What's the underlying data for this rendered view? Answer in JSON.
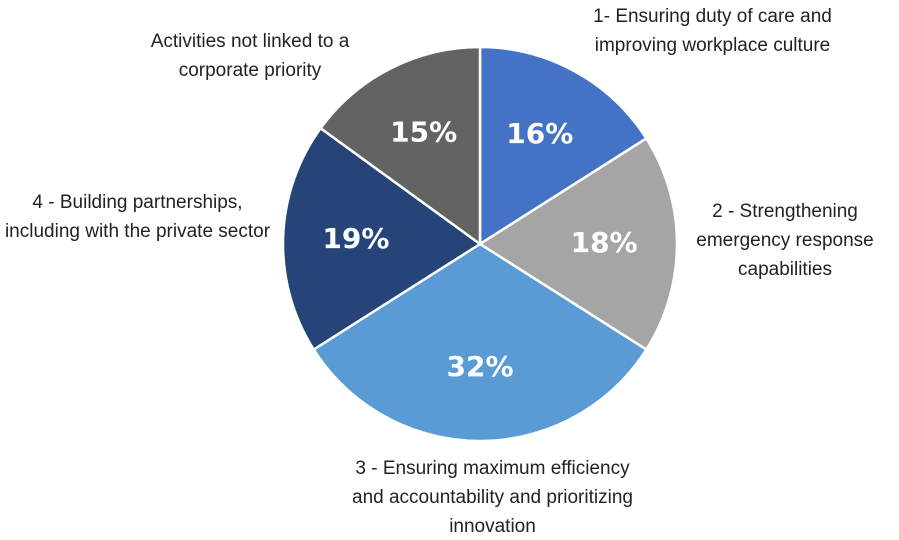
{
  "chart_data": {
    "type": "pie",
    "categories": [
      "1- Ensuring duty of care and improving workplace culture",
      "2 - Strengthening emergency response capabilities",
      "3 - Ensuring maximum efficiency and accountability and prioritizing innovation",
      "4 - Building partnerships, including with the private sector",
      "Activities not linked to a corporate priority"
    ],
    "values": [
      16,
      18,
      32,
      19,
      15
    ],
    "value_labels": [
      "16%",
      "18%",
      "32%",
      "19%",
      "15%"
    ],
    "colors": [
      "#4472c4",
      "#a5a5a5",
      "#5b9bd5",
      "#264478",
      "#636363"
    ]
  }
}
